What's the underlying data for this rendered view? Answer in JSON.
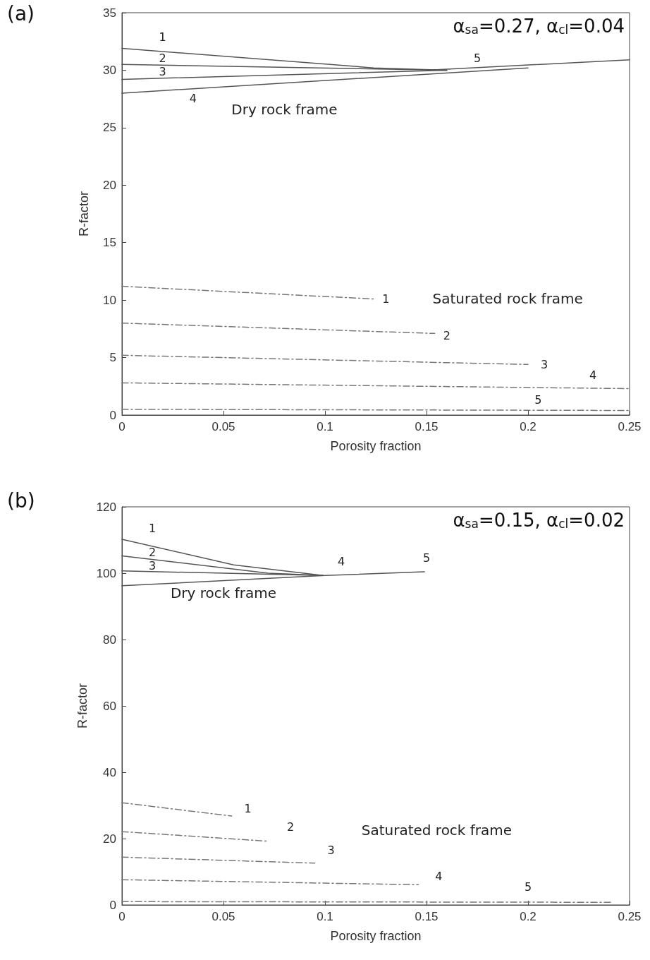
{
  "chart_data": [
    {
      "type": "line",
      "title": "(a)",
      "xlabel": "Porosity fraction",
      "ylabel": "R-factor",
      "xlim": [
        0,
        0.25
      ],
      "xticks": [
        0,
        0.05,
        0.1,
        0.15,
        0.2,
        0.25
      ],
      "ylim": [
        0,
        35
      ],
      "yticks": [
        0,
        5,
        10,
        15,
        20,
        25,
        30,
        35
      ],
      "grid": false,
      "marker": "none",
      "series": [
        {
          "color": "#555555",
          "line_style": "solid",
          "x": [
            0,
            0.124,
            0.16
          ],
          "values": [
            31.9,
            30.2,
            30.0
          ]
        },
        {
          "color": "#555555",
          "line_style": "solid",
          "x": [
            0,
            0.16
          ],
          "values": [
            30.5,
            30.0
          ]
        },
        {
          "color": "#555555",
          "line_style": "solid",
          "x": [
            0,
            0.16
          ],
          "values": [
            29.2,
            30.0
          ]
        },
        {
          "color": "#555555",
          "line_style": "solid",
          "x": [
            0,
            0.2
          ],
          "values": [
            28.0,
            30.2
          ]
        },
        {
          "color": "#555555",
          "line_style": "solid",
          "x": [
            0.15,
            0.25
          ],
          "values": [
            30.0,
            30.9
          ]
        },
        {
          "color": "#777777",
          "line_style": "dashed",
          "x": [
            0,
            0.124
          ],
          "values": [
            11.2,
            10.1
          ]
        },
        {
          "color": "#777777",
          "line_style": "dashed",
          "x": [
            0,
            0.154
          ],
          "values": [
            8.0,
            7.1
          ]
        },
        {
          "color": "#777777",
          "line_style": "dashed",
          "x": [
            0,
            0.2
          ],
          "values": [
            5.2,
            4.4
          ]
        },
        {
          "color": "#777777",
          "line_style": "dashed",
          "x": [
            0,
            0.25
          ],
          "values": [
            2.8,
            2.3
          ]
        },
        {
          "color": "#777777",
          "line_style": "dashed",
          "x": [
            0,
            0.25
          ],
          "values": [
            0.5,
            0.4
          ]
        }
      ],
      "annotations": [
        "α$_{sa}$=0.27, α$_{cl}$=0.04",
        "1",
        "2",
        "3",
        "4",
        "5",
        "Dry rock frame",
        "1",
        "2",
        "3",
        "4",
        "5",
        "Saturated rock frame"
      ]
    },
    {
      "type": "line",
      "title": "(b)",
      "xlabel": "Porosity fraction",
      "ylabel": "R-factor",
      "xlim": [
        0,
        0.25
      ],
      "xticks": [
        0,
        0.05,
        0.1,
        0.15,
        0.2,
        0.25
      ],
      "ylim": [
        0,
        120
      ],
      "yticks": [
        0,
        20,
        40,
        60,
        80,
        100,
        120
      ],
      "grid": false,
      "marker": "none",
      "series": [
        {
          "color": "#555555",
          "line_style": "solid",
          "x": [
            0,
            0.055,
            0.099
          ],
          "values": [
            110.2,
            102.5,
            99.3
          ]
        },
        {
          "color": "#555555",
          "line_style": "solid",
          "x": [
            0,
            0.072,
            0.099
          ],
          "values": [
            105.2,
            100.0,
            99.3
          ]
        },
        {
          "color": "#555555",
          "line_style": "solid",
          "x": [
            0,
            0.099
          ],
          "values": [
            100.7,
            99.3
          ]
        },
        {
          "color": "#555555",
          "line_style": "solid",
          "x": [
            0,
            0.1,
            0.149
          ],
          "values": [
            96.2,
            99.3,
            100.4
          ]
        },
        {
          "color": "#777777",
          "line_style": "dashed",
          "x": [
            0,
            0.054
          ],
          "values": [
            30.8,
            26.8
          ]
        },
        {
          "color": "#777777",
          "line_style": "dashed",
          "x": [
            0,
            0.072
          ],
          "values": [
            22.1,
            19.2
          ]
        },
        {
          "color": "#777777",
          "line_style": "dashed",
          "x": [
            0,
            0.095
          ],
          "values": [
            14.4,
            12.6
          ]
        },
        {
          "color": "#777777",
          "line_style": "dashed",
          "x": [
            0,
            0.146
          ],
          "values": [
            7.6,
            6.1
          ]
        },
        {
          "color": "#777777",
          "line_style": "dashed",
          "x": [
            0,
            0.242
          ],
          "values": [
            1.0,
            0.8
          ]
        }
      ],
      "annotations": [
        "α$_{sa}$=0.15, α$_{cl}$=0.02",
        "1",
        "2",
        "3",
        "4",
        "5",
        "Dry rock frame",
        "1",
        "2",
        "3",
        "4",
        "5",
        "Saturated rock frame"
      ]
    }
  ]
}
